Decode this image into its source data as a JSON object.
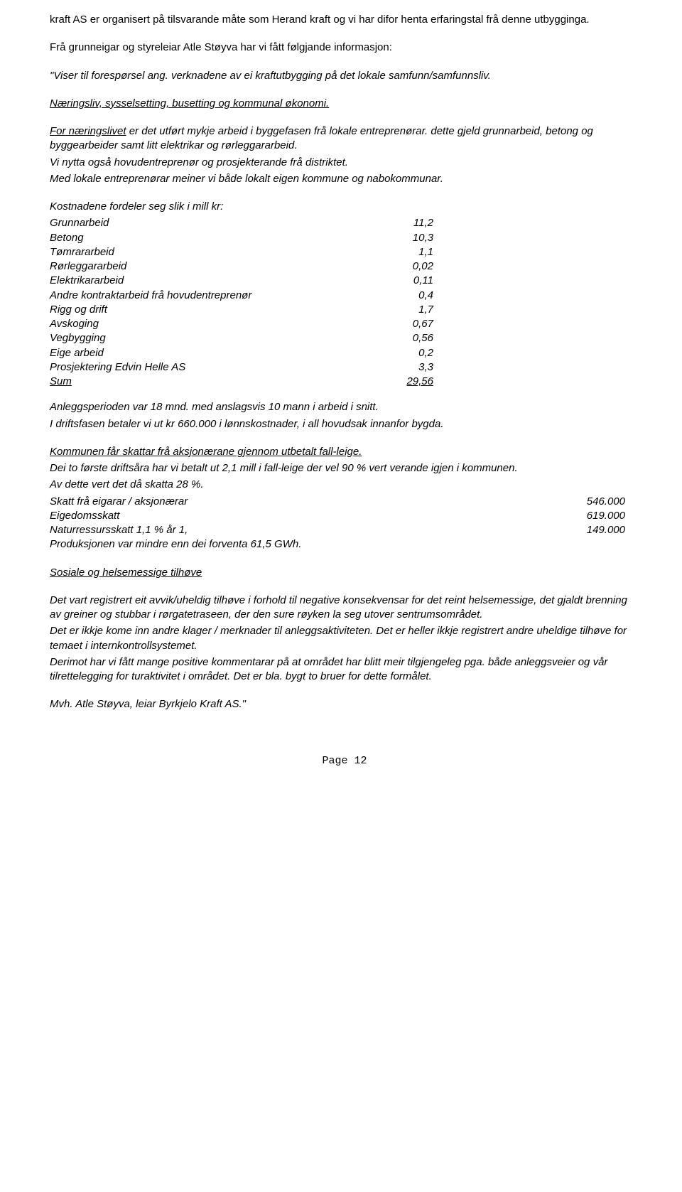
{
  "intro": {
    "p1": "kraft AS er organisert på tilsvarande måte som Herand kraft og vi har difor henta erfaringstal frå denne utbygginga.",
    "p2": "Frå grunneigar og styreleiar Atle Støyva har vi fått følgjande informasjon:",
    "p3a": "\"Viser til forespørsel  ang.  verknadene av ei kraftutbygging på det lokale samfunn/samfunnsliv."
  },
  "section1": {
    "heading": "Næringsliv, sysselsetting, busetting og kommunal økonomi.",
    "p1": "For næringslivet er det utført mykje arbeid i byggefasen frå lokale entreprenørar. dette gjeld grunnarbeid, betong og byggearbeider samt litt elektrikar og rørleggararbeid.",
    "p1b": "Vi nytta også hovudentreprenør og prosjekterande frå distriktet.",
    "p1c": "Med lokale entreprenørar meiner vi både lokalt eigen kommune og nabokommunar."
  },
  "costs": {
    "title": "Kostnadene fordeler seg slik i mill kr:",
    "rows": [
      {
        "label": "Grunnarbeid",
        "value": "11,2"
      },
      {
        "label": "Betong",
        "value": "10,3"
      },
      {
        "label": "Tømrararbeid",
        "value": "1,1"
      },
      {
        "label": "Rørleggararbeid",
        "value": "0,02"
      },
      {
        "label": "Elektrikararbeid",
        "value": "0,11"
      },
      {
        "label": "Andre kontraktarbeid frå hovudentreprenør",
        "value": "0,4"
      },
      {
        "label": "Rigg og drift",
        "value": "1,7"
      },
      {
        "label": "Avskoging",
        "value": "0,67"
      },
      {
        "label": "Vegbygging",
        "value": "0,56"
      },
      {
        "label": "Eige arbeid",
        "value": "0,2"
      },
      {
        "label": "Prosjektering Edvin Helle AS",
        "value": "3,3"
      }
    ],
    "sum_label": "Sum",
    "sum_value": "29,56"
  },
  "after_costs": {
    "p1": "Anleggsperioden var 18 mnd. med anslagsvis 10 mann i arbeid i snitt.",
    "p2": "I driftsfasen betaler vi ut kr 660.000 i lønnskostnader, i all hovudsak innanfor bygda."
  },
  "tax": {
    "p1": "Kommunen får skattar frå aksjonærane gjennom utbetalt fall-leige.",
    "p2": "Dei to første driftsåra har vi betalt ut 2,1 mill i fall-leige der vel 90 % vert verande igjen i kommunen.",
    "p3": "Av dette vert det då skatta 28 %.",
    "rows": [
      {
        "label": "Skatt frå eigarar / aksjonærar",
        "value": "546.000"
      },
      {
        "label": "Eigedomsskatt",
        "value": "619.000"
      },
      {
        "label": "Naturressursskatt 1,1 % år 1,",
        "value": "149.000"
      }
    ],
    "p4": "Produksjonen var mindre enn dei forventa 61,5 GWh."
  },
  "section2": {
    "heading": "Sosiale og helsemessige tilhøve",
    "p1": "Det vart registrert eit avvik/uheldig tilhøve i forhold til negative konsekvensar for det reint helsemessige, det gjaldt brenning av greiner og stubbar i rørgatetraseen, der den sure røyken la seg utover sentrumsområdet.",
    "p2": "Det er ikkje kome inn andre klager / merknader til anleggsaktiviteten. Det er heller ikkje registrert andre uheldige tilhøve for temaet i internkontrollsystemet.",
    "p3": "Derimot har vi fått mange positive kommentarar på at området har blitt meir tilgjengeleg pga. både anleggsveier og vår tilrettelegging for turaktivitet i området. Det er bla. bygt to bruer for dette formålet."
  },
  "signoff": "Mvh. Atle Støyva, leiar Byrkjelo Kraft AS.\"",
  "footer": "Page 12"
}
